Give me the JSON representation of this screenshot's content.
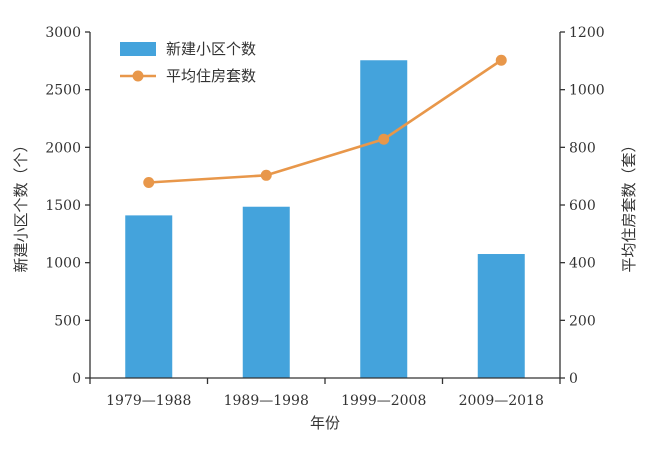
{
  "chart_data": {
    "type": "bar+line",
    "categories": [
      "1979—1988",
      "1989—1998",
      "1999—2008",
      "2009—2018"
    ],
    "xlabel": "年份",
    "series": [
      {
        "name": "新建小区个数",
        "type": "bar",
        "axis": "left",
        "color": "#44a3dc",
        "values": [
          1410,
          1485,
          2755,
          1075
        ]
      },
      {
        "name": "平均住房套数",
        "type": "line",
        "axis": "right",
        "color": "#e8974a",
        "values": [
          678,
          703,
          828,
          1102
        ]
      }
    ],
    "y_left": {
      "label": "新建小区个数（个）",
      "ylim": [
        0,
        3000
      ],
      "ticks": [
        0,
        500,
        1000,
        1500,
        2000,
        2500,
        3000
      ]
    },
    "y_right": {
      "label": "平均住房套数（套）",
      "ylim": [
        0,
        1200
      ],
      "ticks": [
        0,
        200,
        400,
        600,
        800,
        1000,
        1200
      ]
    },
    "grid": false,
    "legend_position": "top-left"
  }
}
